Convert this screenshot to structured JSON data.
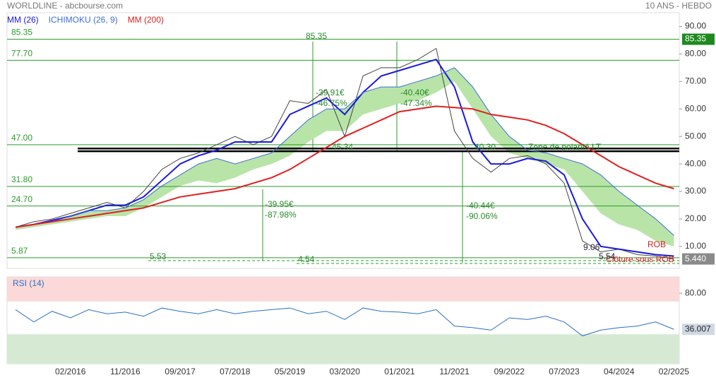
{
  "header": {
    "title": "WORLDLINE - abcbourse.com",
    "period": "10 ANS - HEBDO"
  },
  "chart_data": [
    {
      "type": "line",
      "categories": [
        null,
        null,
        null,
        "02/2016",
        null,
        null,
        "11/2016",
        null,
        null,
        "09/2017",
        null,
        null,
        "07/2018",
        null,
        null,
        "05/2019",
        null,
        null,
        "03/2020",
        null,
        null,
        "01/2021",
        null,
        null,
        "11/2021",
        null,
        null,
        "09/2022",
        null,
        null,
        "07/2023",
        null,
        null,
        "04/2024",
        null,
        null,
        "02/2025"
      ],
      "values": [
        17,
        19,
        20,
        22,
        24,
        26,
        24,
        30,
        38,
        42,
        44,
        47,
        50,
        47,
        50,
        63,
        62,
        67,
        50,
        72,
        75,
        75,
        78,
        82,
        52,
        42,
        37,
        42,
        43,
        40,
        33,
        12,
        8,
        9,
        7,
        6.5,
        5.44
      ],
      "color": "#444444",
      "series": [
        {
          "name": "MM (26)",
          "color": "#1a1adb",
          "values": [
            17,
            18,
            19.5,
            21,
            23,
            25,
            25,
            28,
            34,
            40,
            43,
            45,
            48,
            48,
            48,
            58,
            61,
            64,
            58,
            66,
            72,
            74,
            76,
            78,
            68,
            48,
            40,
            40,
            42,
            41,
            36,
            20,
            10,
            9,
            8,
            7,
            6.5
          ]
        },
        {
          "name": "ICHIMOKU (26, 9)",
          "color": "#3a6fd8",
          "cloud_color": "#b9e4a8",
          "values": [
            17,
            18,
            19,
            21,
            23,
            23,
            24,
            27,
            32,
            36,
            40,
            42,
            40,
            42,
            44,
            50,
            56,
            60,
            60,
            66,
            68,
            68,
            70,
            72,
            75,
            68,
            58,
            50,
            45,
            44,
            42,
            40,
            36,
            30,
            25,
            20,
            14
          ],
          "lower": [
            16,
            17,
            18,
            19,
            20,
            21,
            21,
            24,
            28,
            32,
            34,
            33,
            35,
            38,
            40,
            43,
            48,
            52,
            52,
            58,
            60,
            62,
            63,
            66,
            70,
            60,
            50,
            44,
            42,
            40,
            38,
            30,
            22,
            18,
            16,
            12,
            10
          ]
        },
        {
          "name": "MM (200)",
          "color": "#e02020",
          "values": [
            17,
            18,
            19,
            20,
            21,
            22,
            23,
            24,
            26,
            28,
            29,
            30,
            31,
            33,
            35,
            38,
            42,
            46,
            50,
            53,
            56,
            59,
            60,
            61,
            60.5,
            60,
            58,
            57,
            56,
            54,
            51,
            47,
            43,
            39,
            36,
            33,
            31
          ]
        }
      ],
      "ylim": [
        2,
        95
      ],
      "yticks": [
        {
          "value": 10,
          "label": "10.00"
        },
        {
          "value": 20,
          "label": "20.00"
        },
        {
          "value": 30,
          "label": "30.00"
        },
        {
          "value": 40,
          "label": "40.00"
        },
        {
          "value": 50,
          "label": "50.00"
        },
        {
          "value": 60,
          "label": "60.00"
        },
        {
          "value": 70,
          "label": "70.00"
        },
        {
          "value": 80,
          "label": "80.00"
        },
        {
          "value": 90,
          "label": "90.00"
        }
      ],
      "levels": [
        85.35,
        {
          "value": 77.7,
          "label": "77.70"
        },
        {
          "value": 47,
          "label": "47.00"
        },
        {
          "value": 31.8,
          "label": "31.80"
        },
        {
          "value": 24.7,
          "label": "24.70"
        },
        5.87
      ],
      "level_color": "#2a9d2a",
      "polarity_zone": [
        44.6,
        45.6
      ],
      "price_marks": [
        {
          "value": 85.35,
          "label": "85.35",
          "color": "#1e8a1e"
        },
        {
          "value": 5.44,
          "label": "5.440",
          "color": "#8a8a8a"
        }
      ],
      "annotations": [
        "85.35",
        "-39.91€",
        "-46.75%",
        "-40.40€",
        "-47.34%",
        "45.34",
        "40.30",
        "-39.95€",
        "-87.98%",
        "-40.44€",
        "-90.06%",
        "5.53",
        "4.54",
        "Zone de polarité LT",
        "ROB",
        "Clôture sous ROB",
        "9.06",
        "5.54"
      ]
    },
    {
      "type": "line",
      "title": "RSI (14)",
      "values": [
        60,
        45,
        58,
        50,
        60,
        55,
        57,
        52,
        62,
        58,
        55,
        60,
        55,
        58,
        60,
        62,
        55,
        58,
        48,
        62,
        58,
        57,
        55,
        60,
        40,
        38,
        35,
        50,
        48,
        52,
        45,
        28,
        35,
        38,
        40,
        45,
        36.007
      ],
      "value_labels": [
        null,
        null,
        null,
        null,
        null,
        null,
        null,
        null,
        null,
        null,
        null,
        null,
        null,
        null,
        null,
        null,
        null,
        null,
        null,
        null,
        null,
        null,
        null,
        null,
        null,
        null,
        null,
        null,
        null,
        null,
        null,
        null,
        null,
        null,
        null,
        null,
        "36.007"
      ],
      "color": "#2b6fc4",
      "ylim": [
        0,
        100
      ],
      "yticks": [
        {
          "value": 80,
          "label": "80.00"
        }
      ],
      "overbought": 70,
      "oversold": 30
    }
  ]
}
